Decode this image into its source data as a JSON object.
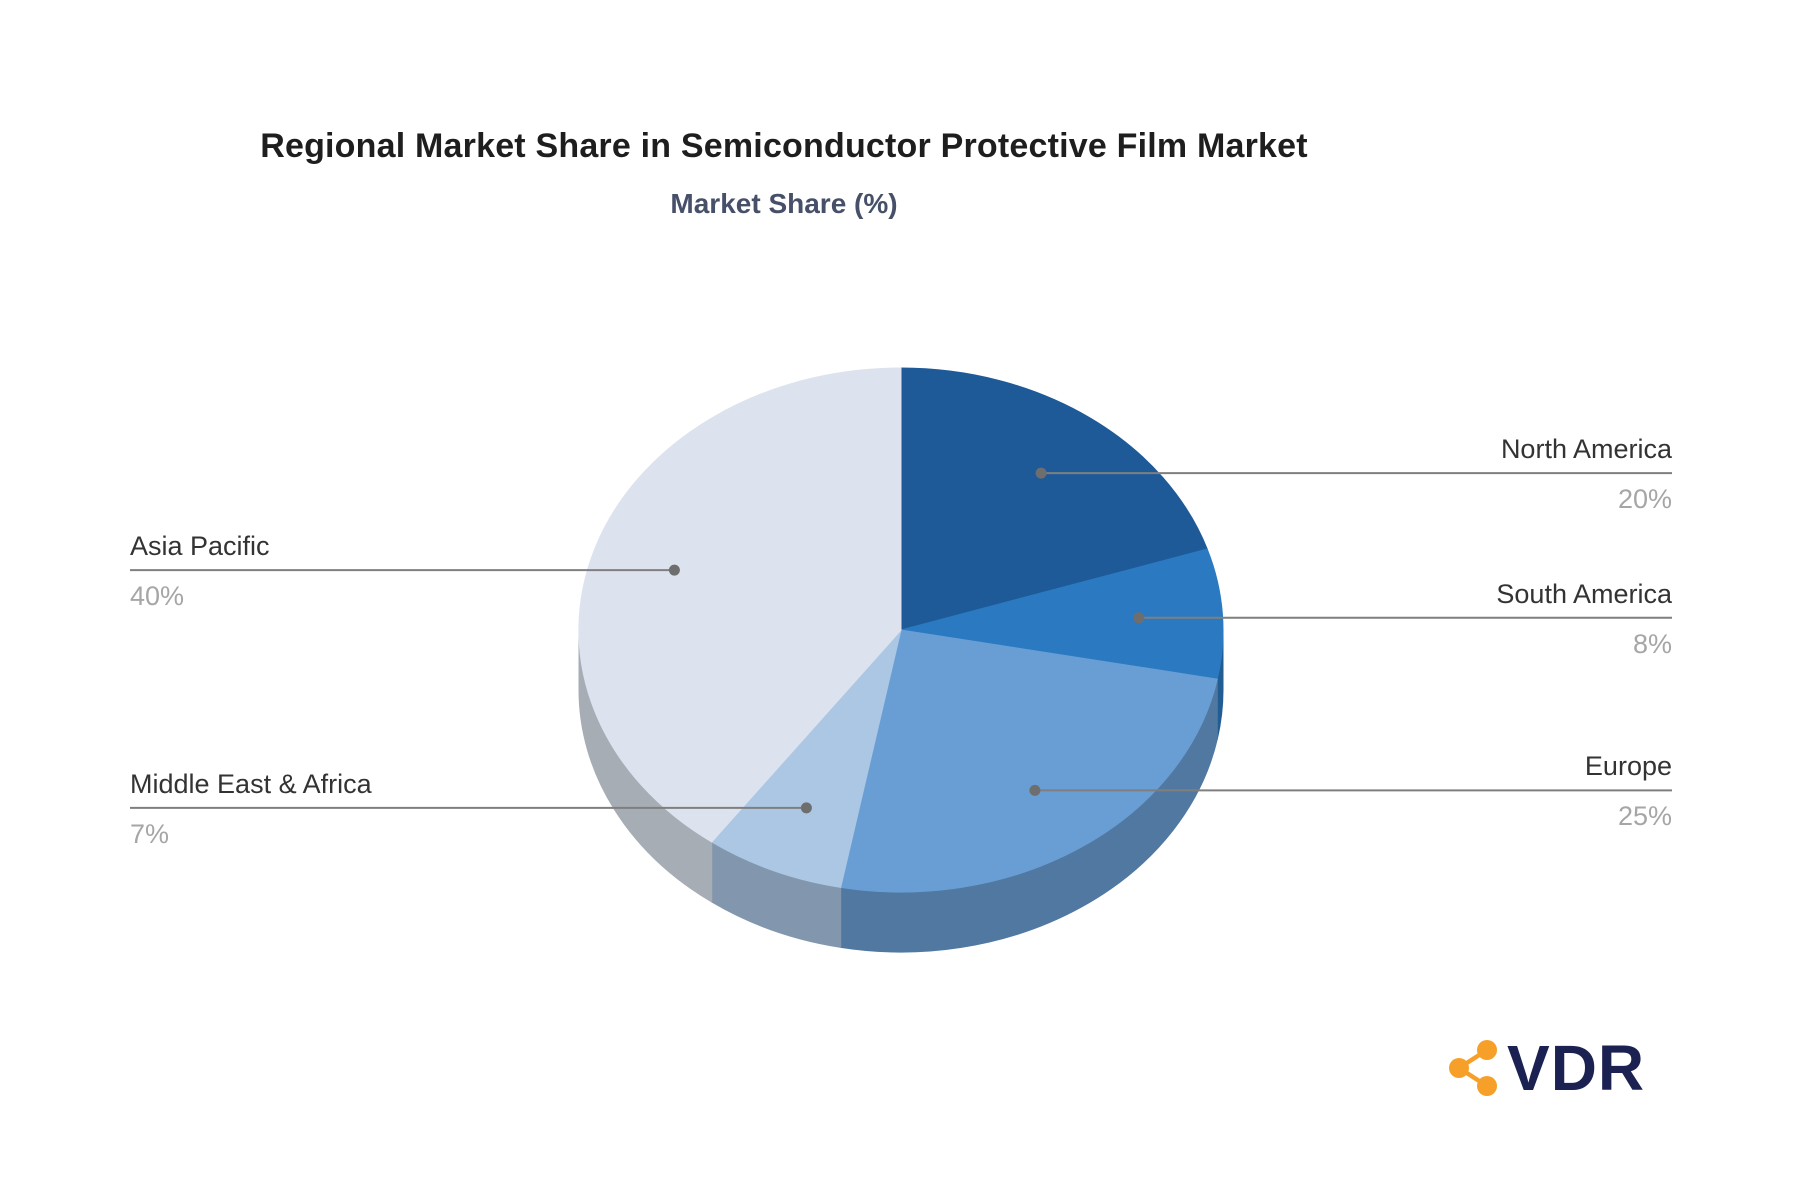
{
  "page": {
    "background": "#ffffff"
  },
  "chart_data": {
    "type": "pie",
    "style": "3d",
    "title": "Regional Market Share in Semiconductor Protective Film Market",
    "subtitle": "Market Share (%)",
    "unit": "%",
    "start_angle_deg": 0,
    "direction": "clockwise",
    "legend": "none",
    "slices": [
      {
        "label": "North America",
        "value": 20,
        "display": "20%",
        "color": "#1E5A98",
        "side": "right"
      },
      {
        "label": "South America",
        "value": 8,
        "display": "8%",
        "color": "#2B7AC1",
        "side": "right"
      },
      {
        "label": "Europe",
        "value": 25,
        "display": "25%",
        "color": "#699ED4",
        "side": "right"
      },
      {
        "label": "Middle East & Africa",
        "value": 7,
        "display": "7%",
        "color": "#ABC7E3",
        "side": "left"
      },
      {
        "label": "Asia Pacific",
        "value": 40,
        "display": "40%",
        "color": "#DCE3EE",
        "side": "left"
      }
    ]
  },
  "logo": {
    "text": "VDR",
    "icon": "share-network-icon",
    "icon_color": "#F6A02A",
    "text_color": "#1B2150"
  },
  "colors": {
    "title": "#1E1E1E",
    "subtitle": "#475069",
    "label_text": "#333333",
    "value_text": "#A6A6A6",
    "connector_line": "#7F7F7F",
    "connector_dot": "#6E6E6E"
  }
}
